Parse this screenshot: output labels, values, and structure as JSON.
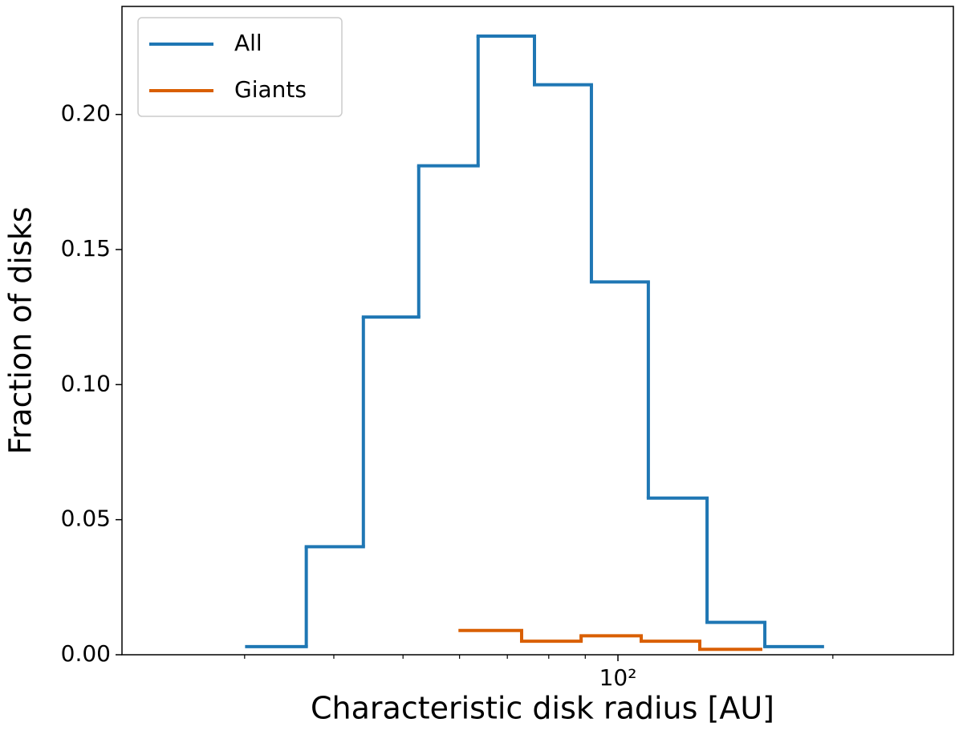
{
  "chart_data": {
    "type": "histogram",
    "xlabel": "Characteristic disk radius [AU]",
    "ylabel": "Fraction of disks",
    "xscale": "log",
    "xlim": [
      20.2,
      295
    ],
    "ylim": [
      0,
      0.24
    ],
    "xticks": [
      {
        "value": 100,
        "label": "10²"
      }
    ],
    "xminorticks": [
      30,
      40,
      50,
      60,
      70,
      80,
      90,
      200
    ],
    "yticks": [
      {
        "value": 0,
        "label": "0.00"
      },
      {
        "value": 0.05,
        "label": "0.05"
      },
      {
        "value": 0.1,
        "label": "0.10"
      },
      {
        "value": 0.15,
        "label": "0.15"
      },
      {
        "value": 0.2,
        "label": "0.20"
      }
    ],
    "legend": "upper left",
    "series": [
      {
        "name": "All",
        "color": "#1f77b4",
        "bins": [
          30.2,
          36.6,
          44.0,
          52.6,
          63.7,
          76.4,
          91.8,
          110.3,
          133.3,
          160.6,
          193.4
        ],
        "values": [
          0.003,
          0.04,
          0.125,
          0.181,
          0.229,
          0.211,
          0.138,
          0.058,
          0.012,
          0.003
        ]
      },
      {
        "name": "Giants",
        "color": "#d95f02",
        "bins": [
          60.1,
          73.3,
          88.8,
          107.8,
          130.2,
          158.5
        ],
        "values": [
          0.009,
          0.005,
          0.007,
          0.005,
          0.002
        ]
      }
    ]
  }
}
